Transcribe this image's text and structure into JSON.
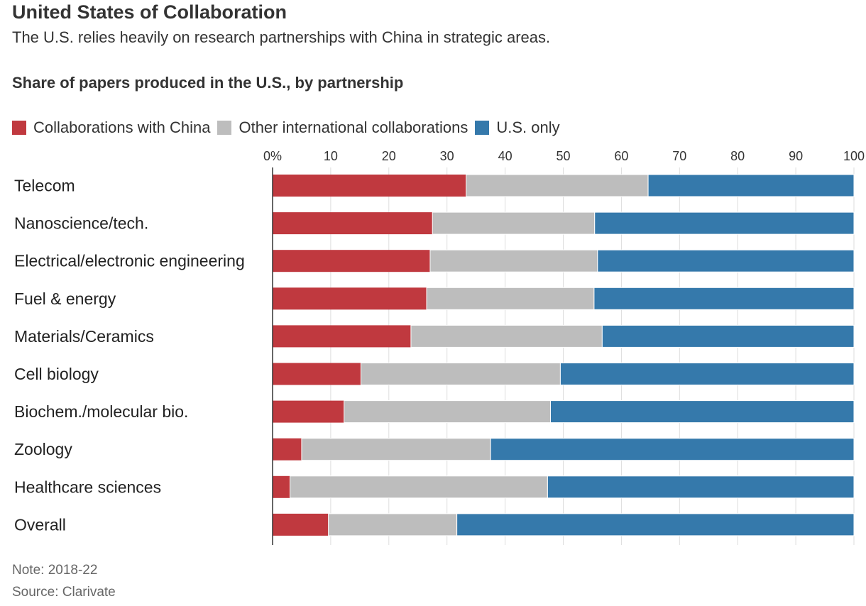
{
  "header": {
    "title": "United States of Collaboration",
    "subtitle": "The U.S. relies heavily on research partnerships with China in strategic areas."
  },
  "footer": {
    "note": "Note: 2018-22",
    "source": "Source: Clarivate"
  },
  "colors": {
    "china": "#c0393f",
    "other": "#bdbdbd",
    "us": "#3579ab",
    "grid": "#dddddd",
    "axis": "#333333"
  },
  "chart_data": {
    "type": "bar",
    "orientation": "horizontal",
    "stacked": true,
    "title": "Share of papers produced in the U.S., by partnership",
    "xlim": [
      0,
      100
    ],
    "x_ticks": [
      "0%",
      "10",
      "20",
      "30",
      "40",
      "50",
      "60",
      "70",
      "80",
      "90",
      "100"
    ],
    "x_tick_values": [
      0,
      10,
      20,
      30,
      40,
      50,
      60,
      70,
      80,
      90,
      100
    ],
    "grid": true,
    "legend_position": "top-left",
    "categories": [
      "Telecom",
      "Nanoscience/tech.",
      "Electrical/electronic engineering",
      "Fuel & energy",
      "Materials/Ceramics",
      "Cell biology",
      "Biochem./molecular bio.",
      "Zoology",
      "Healthcare sciences",
      "Overall"
    ],
    "series": [
      {
        "name": "Collaborations with China",
        "color": "#c0393f",
        "values": [
          33.3,
          27.5,
          27.1,
          26.5,
          23.8,
          15.2,
          12.3,
          5.0,
          3.0,
          9.6
        ]
      },
      {
        "name": "Other international collaborations",
        "color": "#bdbdbd",
        "values": [
          31.3,
          27.9,
          28.8,
          28.8,
          32.9,
          34.3,
          35.5,
          32.5,
          44.3,
          22.1
        ]
      },
      {
        "name": "U.S. only",
        "color": "#3579ab",
        "values": [
          35.4,
          44.6,
          44.1,
          44.7,
          43.3,
          50.5,
          52.2,
          62.5,
          52.7,
          68.3
        ]
      }
    ]
  }
}
